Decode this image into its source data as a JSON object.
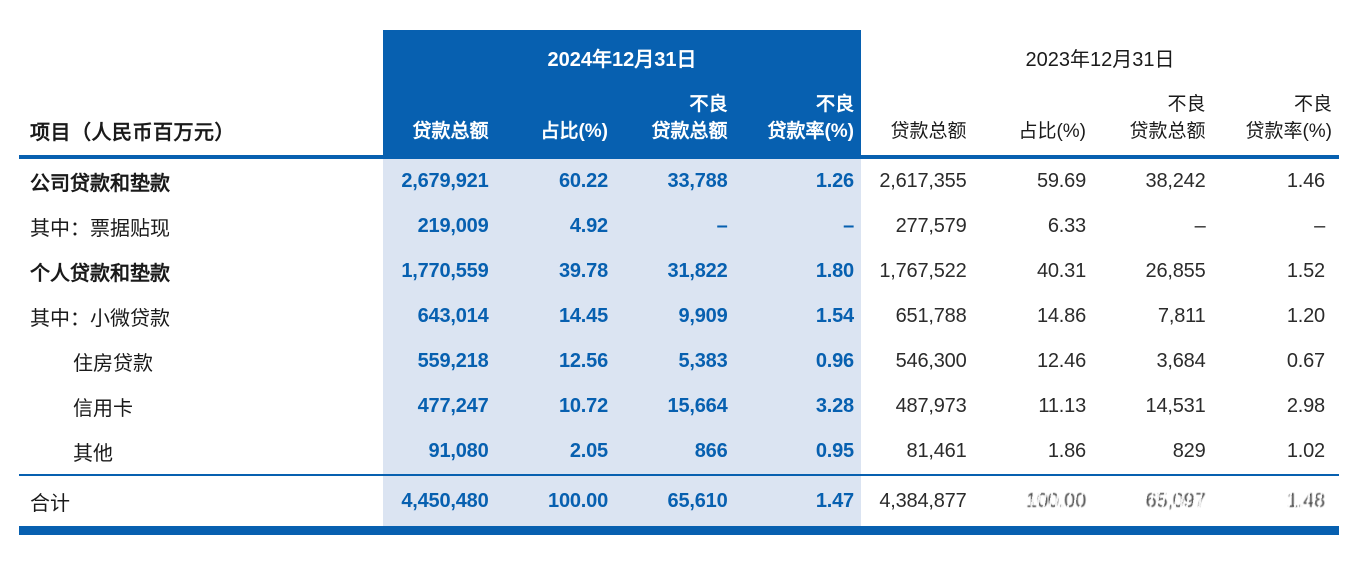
{
  "table": {
    "corner_label": "项目（人民币百万元）",
    "groups": [
      {
        "period": "2024年12月31日",
        "columns": [
          {
            "l1": "",
            "l2": "贷款总额"
          },
          {
            "l1": "",
            "l2": "占比(%)"
          },
          {
            "l1": "不良",
            "l2": "贷款总额"
          },
          {
            "l1": "不良",
            "l2": "贷款率(%)"
          }
        ]
      },
      {
        "period": "2023年12月31日",
        "columns": [
          {
            "l1": "",
            "l2": "贷款总额"
          },
          {
            "l1": "",
            "l2": "占比(%)"
          },
          {
            "l1": "不良",
            "l2": "贷款总额"
          },
          {
            "l1": "不良",
            "l2": "贷款率(%)"
          }
        ]
      }
    ],
    "rows": [
      {
        "label": "公司贷款和垫款",
        "values": [
          "2,679,921",
          "60.22",
          "33,788",
          "1.26",
          "2,617,355",
          "59.69",
          "38,242",
          "1.46"
        ]
      },
      {
        "label": "其中：票据贴现",
        "values": [
          "219,009",
          "4.92",
          "–",
          "–",
          "277,579",
          "6.33",
          "–",
          "–"
        ]
      },
      {
        "label": "个人贷款和垫款",
        "values": [
          "1,770,559",
          "39.78",
          "31,822",
          "1.80",
          "1,767,522",
          "40.31",
          "26,855",
          "1.52"
        ]
      },
      {
        "label": "其中：小微贷款",
        "values": [
          "643,014",
          "14.45",
          "9,909",
          "1.54",
          "651,788",
          "14.86",
          "7,811",
          "1.20"
        ]
      },
      {
        "label": "住房贷款",
        "values": [
          "559,218",
          "12.56",
          "5,383",
          "0.96",
          "546,300",
          "12.46",
          "3,684",
          "0.67"
        ]
      },
      {
        "label": "信用卡",
        "values": [
          "477,247",
          "10.72",
          "15,664",
          "3.28",
          "487,973",
          "11.13",
          "14,531",
          "2.98"
        ]
      },
      {
        "label": "其他",
        "values": [
          "91,080",
          "2.05",
          "866",
          "0.95",
          "81,461",
          "1.86",
          "829",
          "1.02"
        ]
      }
    ],
    "total": {
      "label": "合计",
      "values": [
        "4,450,480",
        "100.00",
        "65,610",
        "1.47",
        "4,384,877",
        "100.00",
        "65,097",
        "1.48"
      ]
    }
  },
  "colors": {
    "accent_blue": "#0760B0",
    "highlight_blue": "#DBE4F2",
    "text_dark": "#1A1A1A"
  }
}
